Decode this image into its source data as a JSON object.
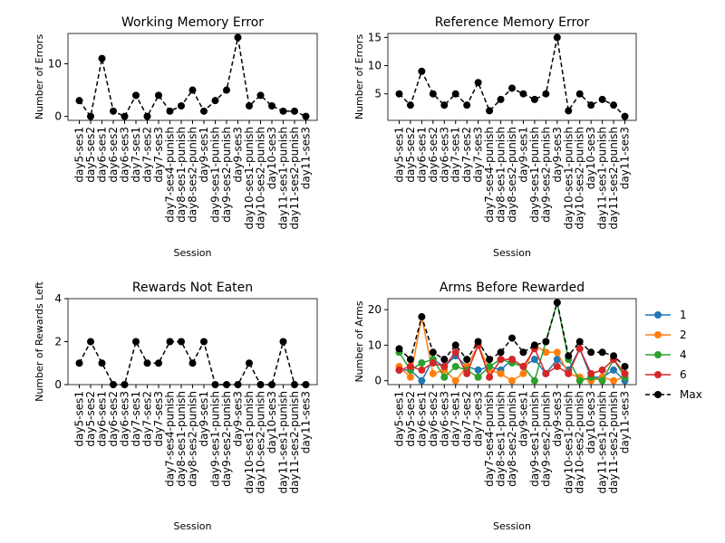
{
  "chart_data": [
    {
      "type": "line",
      "title": "Working Memory Error",
      "xlabel": "Session",
      "ylabel": "Number of Errors",
      "categories": [
        "day5-ses1",
        "day5-ses2",
        "day6-ses1",
        "day6-ses2",
        "day6-ses3",
        "day7-ses1",
        "day7-ses2",
        "day7-ses3",
        "day7-ses4-punish",
        "day8-ses1-punish",
        "day8-ses2-punish",
        "day9-ses1",
        "day9-ses1-punish",
        "day9-ses2-punish",
        "day9-ses3",
        "day10-ses1-punish",
        "day10-ses2-punish",
        "day10-ses3",
        "day11-ses1-punish",
        "day11-ses2-punish",
        "day11-ses3"
      ],
      "values": [
        3,
        0,
        11,
        1,
        0,
        4,
        0,
        4,
        1,
        2,
        5,
        1,
        3,
        5,
        15,
        2,
        4,
        2,
        1,
        1,
        0
      ],
      "color": "#000000",
      "linestyle": "dashed",
      "ylim": [
        -0.75,
        15.75
      ],
      "yticks": [
        0,
        10
      ]
    },
    {
      "type": "line",
      "title": "Reference Memory Error",
      "xlabel": "Session",
      "ylabel": "Number of Errors",
      "categories": [
        "day5-ses1",
        "day5-ses2",
        "day6-ses1",
        "day6-ses2",
        "day6-ses3",
        "day7-ses1",
        "day7-ses2",
        "day7-ses3",
        "day7-ses4-punish",
        "day8-ses1-punish",
        "day8-ses2-punish",
        "day9-ses1",
        "day9-ses1-punish",
        "day9-ses2-punish",
        "day9-ses3",
        "day10-ses1-punish",
        "day10-ses2-punish",
        "day10-ses3",
        "day11-ses1-punish",
        "day11-ses2-punish",
        "day11-ses3"
      ],
      "values": [
        5,
        3,
        9,
        5,
        3,
        5,
        3,
        7,
        2,
        4,
        6,
        5,
        4,
        5,
        15,
        2,
        5,
        3,
        4,
        3,
        1
      ],
      "color": "#000000",
      "linestyle": "dashed",
      "ylim": [
        0.3,
        15.7
      ],
      "yticks": [
        5,
        10,
        15
      ]
    },
    {
      "type": "line",
      "title": "Rewards Not Eaten",
      "xlabel": "Session",
      "ylabel": "Number of Rewards Left",
      "categories": [
        "day5-ses1",
        "day5-ses2",
        "day6-ses1",
        "day6-ses2",
        "day6-ses3",
        "day7-ses1",
        "day7-ses2",
        "day7-ses3",
        "day7-ses4-punish",
        "day8-ses1-punish",
        "day8-ses2-punish",
        "day9-ses1",
        "day9-ses1-punish",
        "day9-ses2-punish",
        "day9-ses3",
        "day10-ses1-punish",
        "day10-ses2-punish",
        "day10-ses3",
        "day11-ses1-punish",
        "day11-ses2-punish",
        "day11-ses3"
      ],
      "values": [
        1,
        2,
        1,
        0,
        0,
        2,
        1,
        1,
        2,
        2,
        1,
        2,
        0,
        0,
        0,
        1,
        0,
        0,
        2,
        0,
        0
      ],
      "color": "#000000",
      "linestyle": "dashed",
      "ylim": [
        0,
        4
      ],
      "yticks": [
        0,
        2,
        4
      ]
    },
    {
      "type": "line",
      "title": "Arms Before Rewarded",
      "xlabel": "Session",
      "ylabel": "Number of Arms",
      "categories": [
        "day5-ses1",
        "day5-ses2",
        "day6-ses1",
        "day6-ses2",
        "day6-ses3",
        "day7-ses1",
        "day7-ses2",
        "day7-ses3",
        "day7-ses4-punish",
        "day8-ses1-punish",
        "day8-ses2-punish",
        "day9-ses1",
        "day9-ses1-punish",
        "day9-ses2-punish",
        "day9-ses3",
        "day10-ses1-punish",
        "day10-ses2-punish",
        "day10-ses3",
        "day11-ses1-punish",
        "day11-ses2-punish",
        "day11-ses3"
      ],
      "series": [
        {
          "name": "1",
          "color": "#1f77b4",
          "linestyle": "solid",
          "values": [
            3,
            3,
            0,
            6,
            4,
            7,
            4,
            3,
            4,
            3,
            6,
            4,
            6,
            2,
            6,
            3,
            9,
            1,
            1,
            3,
            0
          ]
        },
        {
          "name": "2",
          "color": "#ff7f0e",
          "linestyle": "solid",
          "values": [
            4,
            1,
            18,
            2,
            3,
            0,
            4,
            10,
            3,
            2,
            0,
            2,
            10,
            8,
            8,
            2,
            1,
            0,
            1,
            0,
            1
          ]
        },
        {
          "name": "4",
          "color": "#2ca02c",
          "linestyle": "solid",
          "values": [
            8,
            3,
            5,
            6,
            1,
            4,
            3,
            1,
            4,
            6,
            5,
            4,
            0,
            11,
            22,
            6,
            0,
            1,
            0,
            6,
            1
          ]
        },
        {
          "name": "6",
          "color": "#d62728",
          "linestyle": "solid",
          "values": [
            3,
            4,
            3,
            5,
            4,
            8,
            2,
            10,
            1,
            6,
            6,
            4,
            9,
            2,
            4,
            2,
            9,
            2,
            3,
            6,
            2
          ]
        },
        {
          "name": "Max",
          "color": "#000000",
          "linestyle": "dashed",
          "values": [
            9,
            6,
            18,
            8,
            6,
            10,
            6,
            11,
            6,
            8,
            12,
            8,
            10,
            11,
            22,
            7,
            11,
            8,
            8,
            7,
            4
          ]
        }
      ],
      "ylim": [
        -1.1,
        23.1
      ],
      "yticks": [
        0,
        10,
        20
      ],
      "legend": "outside right"
    }
  ]
}
